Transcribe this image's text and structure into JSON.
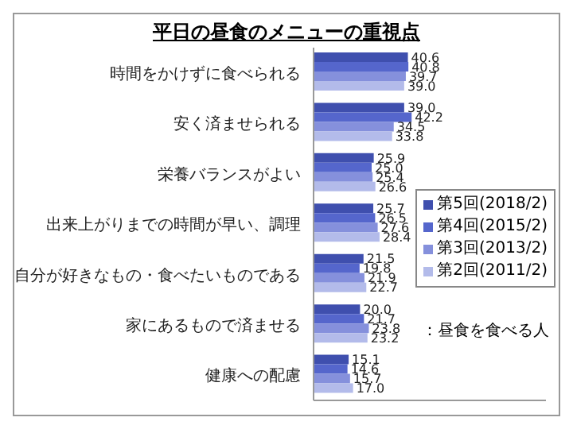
{
  "chart_data": {
    "type": "bar",
    "orientation": "horizontal",
    "title": "平日の昼食のメニューの重視点",
    "categories": [
      "時間をかけずに食べられる",
      "安く済ませられる",
      "栄養バランスがよい",
      "出来上がりまでの時間が早い、調理",
      "自分が好きなもの・食べたいものである",
      "家にあるもので済ませる",
      "健康への配慮"
    ],
    "series": [
      {
        "name": "第5回(2018/2)",
        "color": "#3f4fae",
        "values": [
          40.6,
          39.0,
          25.9,
          25.7,
          21.5,
          20.0,
          15.1
        ],
        "value_labels": [
          "40.6",
          "39.0",
          "25.9",
          "25.7",
          "21.5",
          "20.0",
          "15.1"
        ]
      },
      {
        "name": "第4回(2015/2)",
        "color": "#5566cc",
        "values": [
          40.8,
          42.2,
          25.0,
          26.5,
          19.8,
          21.7,
          14.6
        ],
        "value_labels": [
          "40.8",
          "42.2",
          "25.0",
          "26.5",
          "19.8",
          "21.7",
          "14.6"
        ]
      },
      {
        "name": "第3回(2013/2)",
        "color": "#8590dc",
        "values": [
          39.7,
          34.5,
          25.4,
          27.6,
          21.9,
          23.8,
          15.7
        ],
        "value_labels": [
          "39.7",
          "34.5",
          "25.4",
          "27.6",
          "21.9",
          "23.8",
          "15.7"
        ]
      },
      {
        "name": "第2回(2011/2)",
        "color": "#b3bbea",
        "values": [
          39.0,
          33.8,
          26.6,
          28.4,
          22.7,
          23.2,
          17.0
        ],
        "value_labels": [
          "39.0",
          "33.8",
          "26.6",
          "28.4",
          "22.7",
          "23.2",
          "17.0"
        ]
      }
    ],
    "xlim": [
      0,
      100
    ],
    "tick_labels": "y",
    "legend": "right",
    "annotations": [
      "：昼食を食べる人"
    ]
  }
}
